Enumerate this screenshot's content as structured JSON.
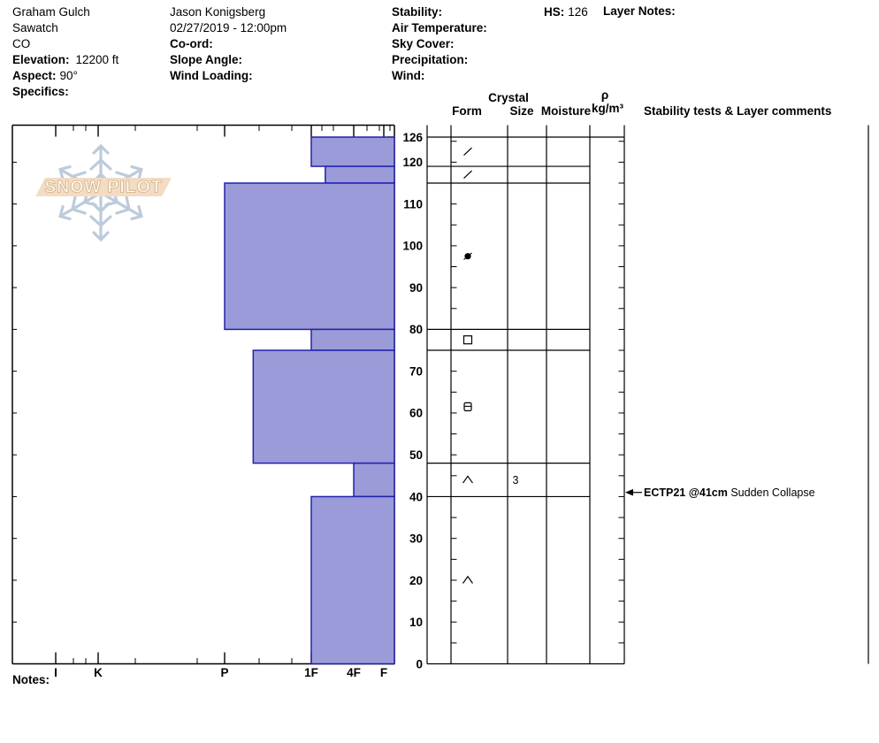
{
  "site": {
    "name": "Graham Gulch",
    "range": "Sawatch",
    "state": "CO",
    "elevation_label": "Elevation:",
    "elevation_value": "12200 ft",
    "aspect_label": "Aspect:",
    "aspect_value": "90°",
    "specifics_label": "Specifics:"
  },
  "observer": {
    "name": "Jason Konigsberg",
    "datetime": "02/27/2019 - 12:00pm",
    "coord_label": "Co-ord:",
    "slope_angle_label": "Slope Angle:",
    "wind_loading_label": "Wind Loading:"
  },
  "conditions": {
    "stability_label": "Stability:",
    "air_temp_label": "Air Temperature:",
    "sky_cover_label": "Sky Cover:",
    "precipitation_label": "Precipitation:",
    "wind_label": "Wind:"
  },
  "hs": {
    "label": "HS:",
    "value": "126"
  },
  "layer_notes_label": "Layer Notes:",
  "notes_label": "Notes:",
  "logo": {
    "text": "SNOW PILOT"
  },
  "table_header": {
    "crystal": "Crystal",
    "form": "Form",
    "size": "Size",
    "moisture": "Moisture",
    "rho": "ρ",
    "rho_unit": "kg/m³",
    "stability": "Stability tests & Layer comments"
  },
  "chart_data": {
    "type": "bar",
    "subtype": "snow-hardness-profile",
    "orientation": "horizontal",
    "title": "Snow pit hardness profile",
    "hs_cm": 126,
    "depth_unit": "cm",
    "depth_tick_labels": [
      126,
      120,
      110,
      100,
      90,
      80,
      70,
      60,
      50,
      40,
      30,
      20,
      10,
      0
    ],
    "hardness_categories": [
      "I",
      "K",
      "P",
      "1F",
      "4F",
      "F"
    ],
    "grid": false,
    "bar_fill": "#9b9bd9",
    "bar_stroke": "#2121ad",
    "layers": [
      {
        "top_cm": 126,
        "bottom_cm": 119,
        "hardness": "1F",
        "form": "DF",
        "crystal_size_mm": "",
        "moisture": "",
        "density": ""
      },
      {
        "top_cm": 119,
        "bottom_cm": 115,
        "hardness": "1F-",
        "form": "DF",
        "crystal_size_mm": "",
        "moisture": "",
        "density": ""
      },
      {
        "top_cm": 115,
        "bottom_cm": 80,
        "hardness": "P",
        "form": "RG",
        "crystal_size_mm": "",
        "moisture": "",
        "density": ""
      },
      {
        "top_cm": 80,
        "bottom_cm": 75,
        "hardness": "1F",
        "form": "FC",
        "crystal_size_mm": "",
        "moisture": "",
        "density": ""
      },
      {
        "top_cm": 75,
        "bottom_cm": 48,
        "hardness": "P-",
        "form": "FCxr",
        "crystal_size_mm": "",
        "moisture": "",
        "density": ""
      },
      {
        "top_cm": 48,
        "bottom_cm": 40,
        "hardness": "4F",
        "form": "DH",
        "crystal_size_mm": "3",
        "moisture": "",
        "density": ""
      },
      {
        "top_cm": 40,
        "bottom_cm": 0,
        "hardness": "1F",
        "form": "DH",
        "crystal_size_mm": "",
        "moisture": "",
        "density": ""
      }
    ],
    "stability_tests": [
      {
        "label": "ECTP21 @41cm",
        "comment": "Sudden Collapse",
        "depth_cm": 41
      }
    ]
  }
}
